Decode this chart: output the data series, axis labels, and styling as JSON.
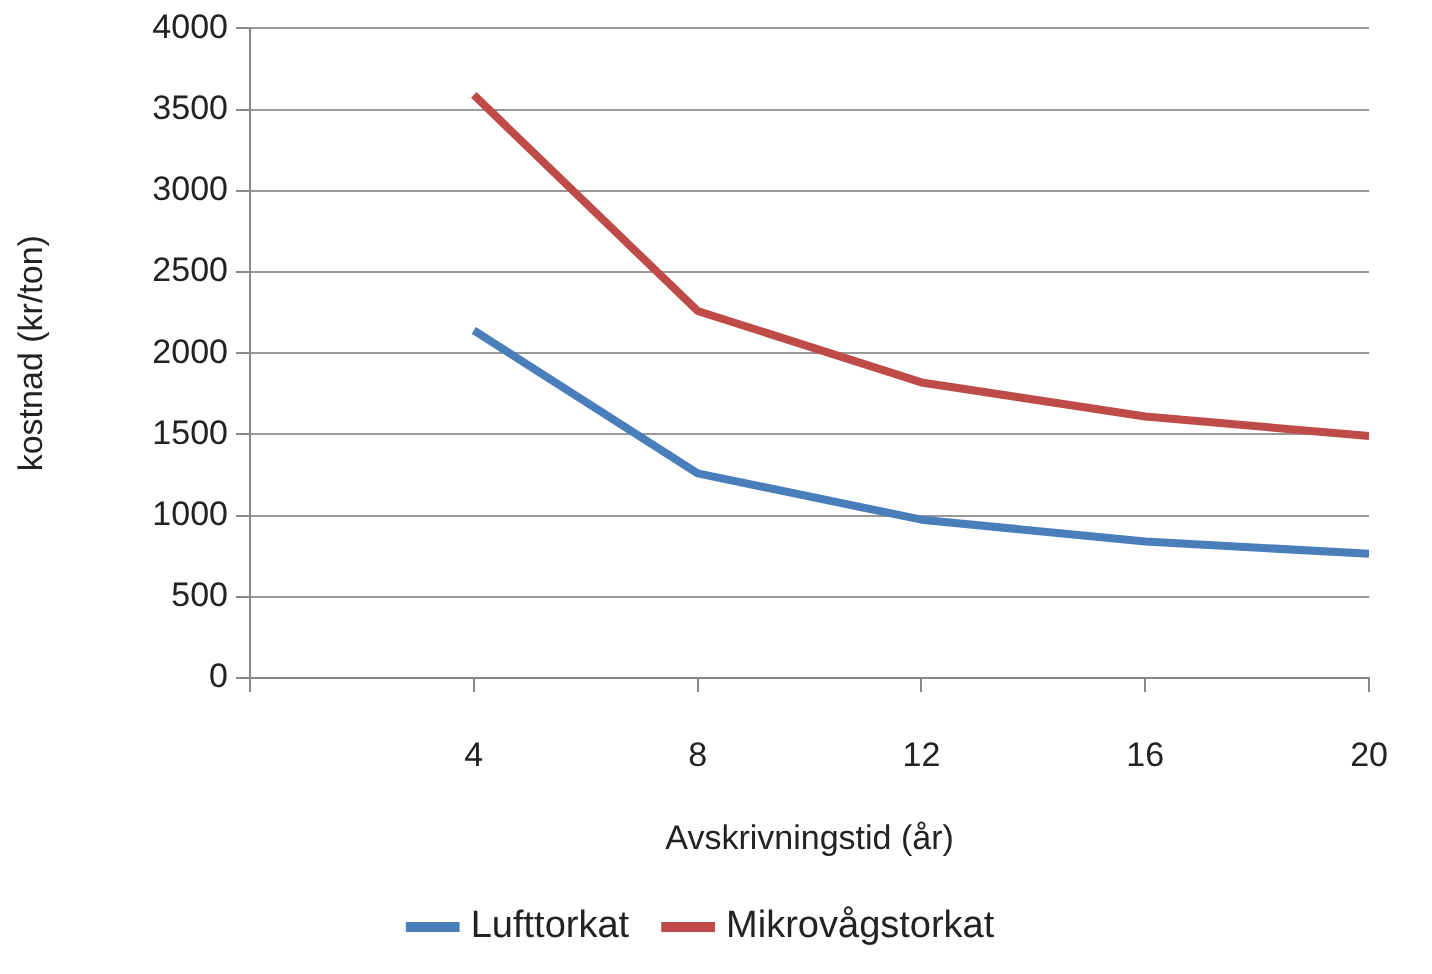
{
  "chart_data": {
    "type": "line",
    "xlabel": "Avskrivningstid (år)",
    "ylabel": "kostnad (kr/ton)",
    "x": [
      4,
      8,
      12,
      16,
      20
    ],
    "series": [
      {
        "name": "Lufttorkat",
        "color": "#4a7ebb",
        "values": [
          2140,
          1260,
          975,
          840,
          765
        ]
      },
      {
        "name": "Mikrovågstorkat",
        "color": "#be4b48",
        "values": [
          3590,
          2260,
          1820,
          1610,
          1490
        ]
      }
    ],
    "xlim": [
      0,
      20
    ],
    "xticks": [
      {
        "value": 0,
        "label": null
      },
      4,
      8,
      12,
      16,
      20
    ],
    "ylim": [
      0,
      4000
    ],
    "yticks": [
      0,
      500,
      1000,
      1500,
      2000,
      2500,
      3000,
      3500,
      4000
    ],
    "grid": "y",
    "legend": "bottom",
    "marker": "none",
    "line_style": "solid"
  }
}
